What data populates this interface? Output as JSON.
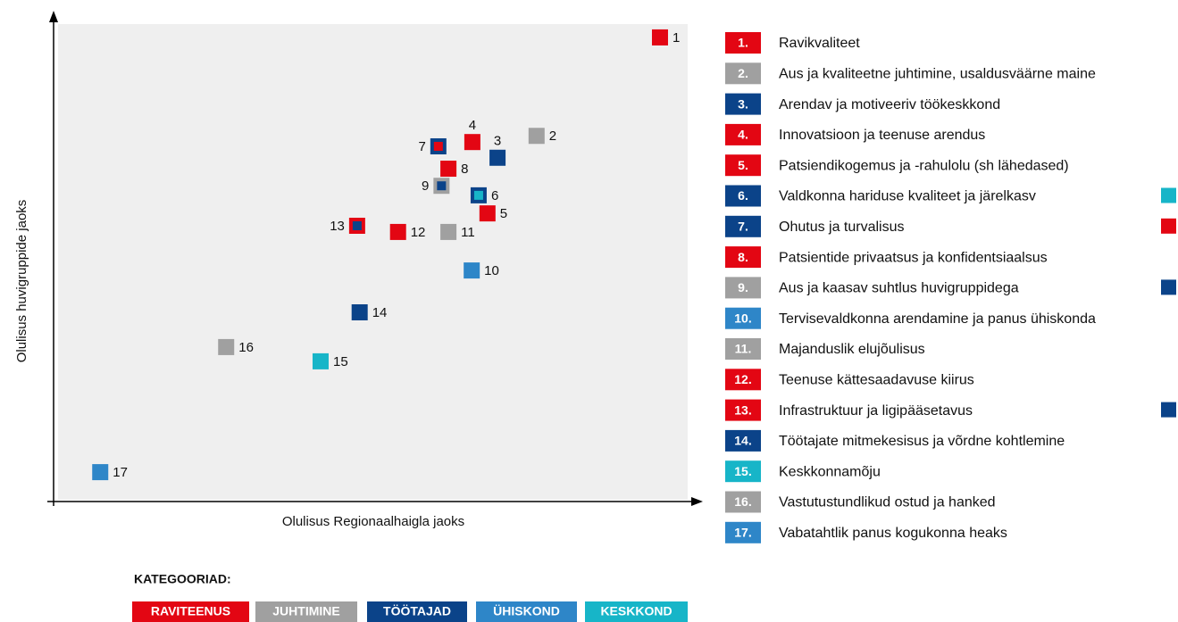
{
  "chart_data": {
    "type": "scatter",
    "xlabel": "Olulisus Regionaalhaigla jaoks",
    "ylabel": "Olulisus huvigruppide jaoks",
    "xlim": [
      0,
      100
    ],
    "ylim": [
      0,
      100
    ],
    "x": [
      95.6,
      76.0,
      69.8,
      65.8,
      68.2,
      66.8,
      60.4,
      62.0,
      60.9,
      65.7,
      62.0,
      54.0,
      47.5,
      47.9,
      41.7,
      26.7,
      6.7
    ],
    "values": [
      97.2,
      76.5,
      71.9,
      75.2,
      60.2,
      64.0,
      74.3,
      69.6,
      66.0,
      48.2,
      56.3,
      56.3,
      57.6,
      39.4,
      29.1,
      32.1,
      5.8
    ],
    "point_labels": [
      "1",
      "2",
      "3",
      "4",
      "5",
      "6",
      "7",
      "8",
      "9",
      "10",
      "11",
      "12",
      "13",
      "14",
      "15",
      "16",
      "17"
    ],
    "colors": [
      "#e30613",
      "#a0a0a0",
      "#0b4389",
      "#e30613",
      "#e30613",
      "#0b4389",
      "#0b4389",
      "#e30613",
      "#a0a0a0",
      "#2e86c8",
      "#a0a0a0",
      "#e30613",
      "#e30613",
      "#0b4389",
      "#17b5c8",
      "#a0a0a0",
      "#2e86c8"
    ],
    "inner_colors": [
      null,
      null,
      null,
      null,
      null,
      "#17b5c8",
      "#e30613",
      null,
      "#0b4389",
      null,
      null,
      null,
      "#0b4389",
      null,
      null,
      null,
      null
    ],
    "legend_items": [
      {
        "number": "1.",
        "name": "Ravikvaliteet"
      },
      {
        "number": "2.",
        "name": "Aus ja kvaliteetne juhtimine, usaldusväärne maine"
      },
      {
        "number": "3.",
        "name": "Arendav ja motiveeriv töökeskkond"
      },
      {
        "number": "4.",
        "name": "Innovatsioon ja teenuse arendus"
      },
      {
        "number": "5.",
        "name": "Patsiendikogemus ja -rahulolu (sh lähedased)"
      },
      {
        "number": "6.",
        "name": "Valdkonna hariduse kvaliteet ja järelkasv"
      },
      {
        "number": "7.",
        "name": "Ohutus ja turvalisus"
      },
      {
        "number": "8.",
        "name": "Patsientide privaatsus ja konfidentsiaalsus"
      },
      {
        "number": "9.",
        "name": "Aus ja kaasav suhtlus huvigruppidega"
      },
      {
        "number": "10.",
        "name": "Tervisevaldkonna  arendamine ja panus ühiskonda"
      },
      {
        "number": "11.",
        "name": "Majanduslik elujõulisus"
      },
      {
        "number": "12.",
        "name": "Teenuse kättesaadavuse kiirus"
      },
      {
        "number": "13.",
        "name": "Infrastruktuur ja ligipääsetavus"
      },
      {
        "number": "14.",
        "name": "Töötajate mitmekesisus ja võrdne kohtlemine"
      },
      {
        "number": "15.",
        "name": "Keskkonnamõju"
      },
      {
        "number": "16.",
        "name": "Vastutustundlikud ostud ja hanked"
      },
      {
        "number": "17.",
        "name": "Vabatahtlik panus kogukonna heaks"
      }
    ],
    "categories_title": "KATEGOORIAD:",
    "categories": [
      {
        "name": "RAVITEENUS",
        "color": "#e30613"
      },
      {
        "name": "JUHTIMINE",
        "color": "#a0a0a0"
      },
      {
        "name": "TÖÖTAJAD",
        "color": "#0b4389"
      },
      {
        "name": "ÜHISKOND",
        "color": "#2e86c8"
      },
      {
        "name": "KESKKOND",
        "color": "#17b5c8"
      }
    ]
  }
}
